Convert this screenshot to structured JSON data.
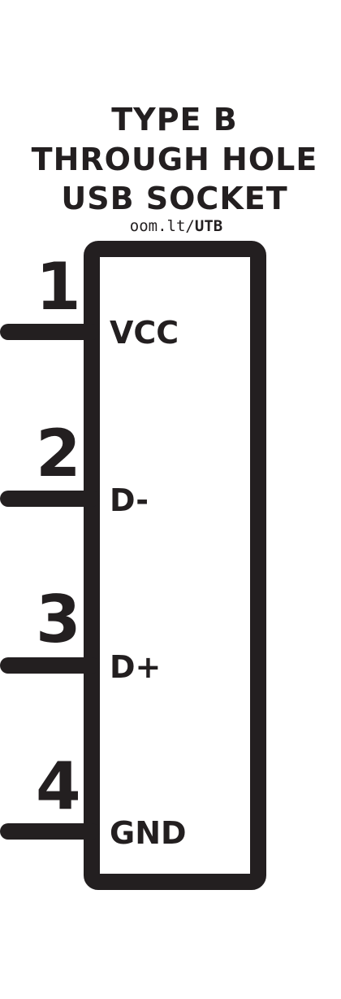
{
  "title": {
    "line1": "TYPE B",
    "line2": "THROUGH HOLE",
    "line3": "USB SOCKET"
  },
  "url": {
    "prefix": "oom.lt/",
    "code": "UTB"
  },
  "pins": [
    {
      "number": "1",
      "label": "VCC"
    },
    {
      "number": "2",
      "label": "D-"
    },
    {
      "number": "3",
      "label": "D+"
    },
    {
      "number": "4",
      "label": "GND"
    }
  ],
  "colors": {
    "ink": "#231f20",
    "background": "#ffffff"
  }
}
